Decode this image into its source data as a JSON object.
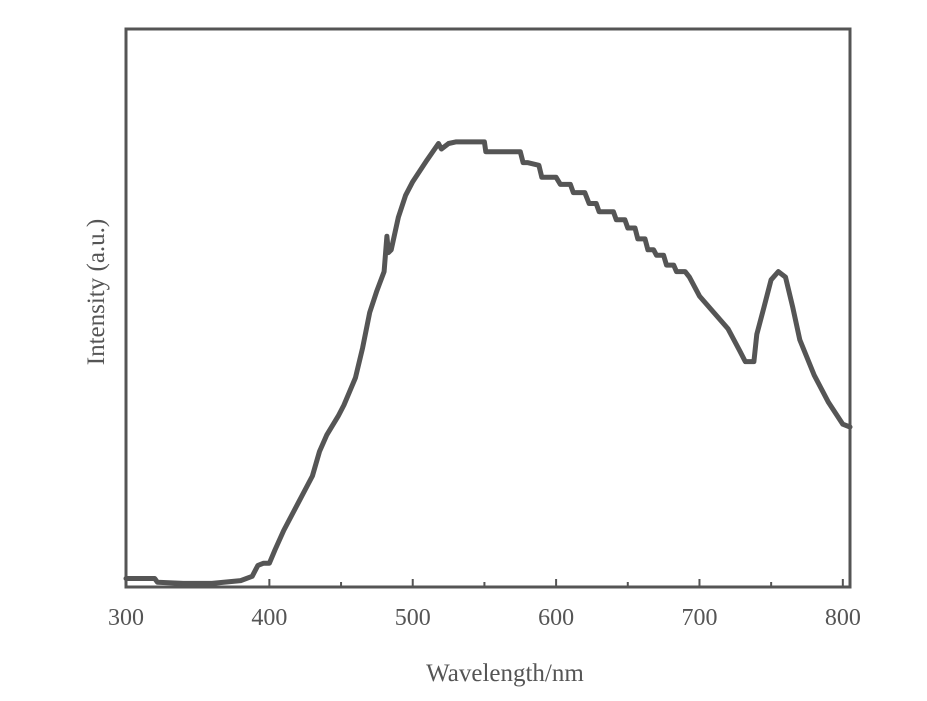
{
  "chart_data": {
    "type": "line",
    "title": "",
    "xlabel": "Wavelength/nm",
    "ylabel": "Intensity (a.u.)",
    "xlim": [
      300,
      805
    ],
    "ylim": [
      0,
      1
    ],
    "x_ticks": [
      300,
      400,
      500,
      600,
      700,
      800
    ],
    "x_tick_labels": [
      "300",
      "400",
      "500",
      "600",
      "700",
      "800"
    ],
    "y_ticks_labeled": false,
    "grid": false,
    "legend": "none",
    "series": [
      {
        "color": "#555555",
        "x": [
          300,
          320,
          322,
          340,
          360,
          380,
          388,
          392,
          396,
          400,
          404,
          410,
          420,
          430,
          435,
          440,
          448,
          452,
          460,
          465,
          470,
          475,
          480,
          482,
          483,
          485,
          490,
          495,
          500,
          510,
          518,
          520,
          525,
          530,
          550,
          551,
          560,
          575,
          577,
          580,
          588,
          590,
          600,
          603,
          610,
          612,
          620,
          623,
          628,
          630,
          640,
          642,
          648,
          650,
          655,
          657,
          662,
          664,
          668,
          670,
          675,
          677,
          682,
          684,
          690,
          693,
          700,
          710,
          720,
          728,
          732,
          738,
          740,
          742,
          745,
          750,
          755,
          760,
          765,
          770,
          780,
          790,
          800,
          805
        ],
        "y": [
          0.012,
          0.012,
          0.005,
          0.003,
          0.003,
          0.008,
          0.016,
          0.036,
          0.04,
          0.04,
          0.065,
          0.1,
          0.15,
          0.2,
          0.245,
          0.275,
          0.31,
          0.33,
          0.38,
          0.435,
          0.5,
          0.54,
          0.575,
          0.64,
          0.61,
          0.615,
          0.675,
          0.715,
          0.74,
          0.78,
          0.81,
          0.8,
          0.81,
          0.813,
          0.813,
          0.795,
          0.795,
          0.795,
          0.775,
          0.775,
          0.77,
          0.748,
          0.748,
          0.735,
          0.735,
          0.72,
          0.72,
          0.7,
          0.7,
          0.685,
          0.685,
          0.67,
          0.67,
          0.655,
          0.655,
          0.635,
          0.635,
          0.615,
          0.615,
          0.605,
          0.605,
          0.587,
          0.587,
          0.575,
          0.575,
          0.565,
          0.53,
          0.5,
          0.47,
          0.43,
          0.41,
          0.41,
          0.46,
          0.48,
          0.51,
          0.56,
          0.575,
          0.565,
          0.51,
          0.45,
          0.385,
          0.335,
          0.295,
          0.29
        ]
      }
    ]
  }
}
